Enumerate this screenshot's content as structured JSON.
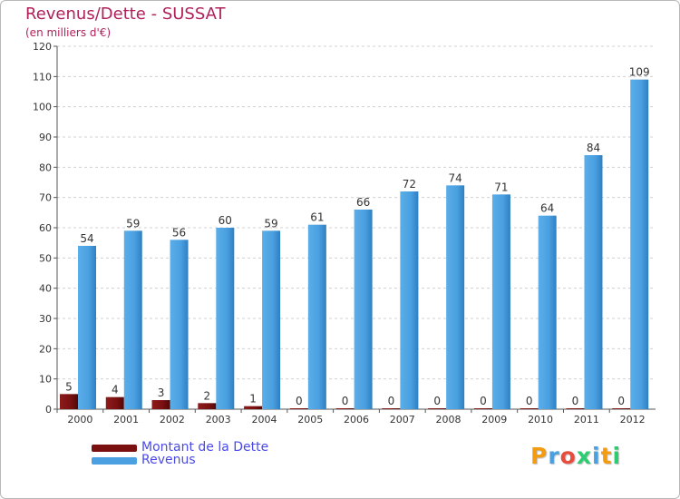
{
  "chart_data": {
    "type": "bar",
    "title": "Revenus/Dette - SUSSAT",
    "subtitle": "(en milliers d'€)",
    "xlabel": "",
    "ylabel": "",
    "ylim": [
      0,
      120
    ],
    "ytick_step": 10,
    "grid": true,
    "categories": [
      "2000",
      "2001",
      "2002",
      "2003",
      "2004",
      "2005",
      "2006",
      "2007",
      "2008",
      "2009",
      "2010",
      "2011",
      "2012"
    ],
    "series": [
      {
        "name": "Montant de la Dette",
        "color": "#7a1010",
        "values": [
          5,
          4,
          3,
          2,
          1,
          0,
          0,
          0,
          0,
          0,
          0,
          0,
          0
        ]
      },
      {
        "name": "Revenus",
        "color": "#4aa0e0",
        "values": [
          54,
          59,
          56,
          60,
          59,
          61,
          66,
          72,
          74,
          71,
          64,
          84,
          109
        ]
      }
    ],
    "legend_position": "bottom-left"
  },
  "logo": {
    "letters": [
      "P",
      "r",
      "o",
      "x",
      "i",
      "t",
      "i"
    ],
    "colors": [
      "#f39c12",
      "#4aa0e0",
      "#e74c3c",
      "#2ecc71",
      "#4aa0e0",
      "#f39c12",
      "#2ecc71"
    ]
  }
}
